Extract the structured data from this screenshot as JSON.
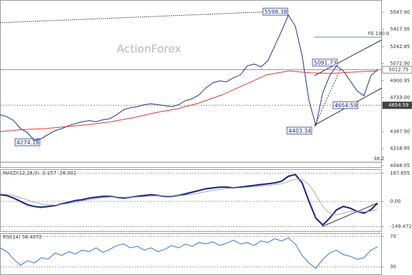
{
  "watermark": "ActionForex",
  "chart_data": [
    {
      "type": "line",
      "ylim": [
        4027,
        5712
      ],
      "yticks": [
        {
          "value": 5587.9,
          "label": "5587.90"
        },
        {
          "value": 5417.95,
          "label": "5417.95"
        },
        {
          "value": 5242.85,
          "label": "5242.85"
        },
        {
          "value": 5072.9,
          "label": "5072.90"
        },
        {
          "value": 4900.95,
          "label": "4900.95"
        },
        {
          "value": 4733,
          "label": "4733.00"
        },
        {
          "value": 4387.9,
          "label": "4387.90"
        },
        {
          "value": 4218.95,
          "label": "4218.95"
        },
        {
          "value": 4048.05,
          "label": "4048.05"
        }
      ],
      "series": [
        {
          "color": "#1a2a8a",
          "values": [
            4560,
            4540,
            4500,
            4420,
            4380,
            4300,
            4320,
            4360,
            4400,
            4420,
            4450,
            4470,
            4490,
            4500,
            4490,
            4510,
            4520,
            4560,
            4610,
            4630,
            4640,
            4660,
            4670,
            4660,
            4650,
            4640,
            4660,
            4700,
            4720,
            4760,
            4830,
            4880,
            4900,
            4890,
            4930,
            4960,
            5050,
            5070,
            5040,
            5100,
            5250,
            5400,
            5560,
            5450,
            5150,
            4700,
            4450,
            4780,
            4950,
            5050,
            5000,
            4900,
            4800,
            4750,
            4950,
            5012.75
          ]
        },
        {
          "color": "#e03030",
          "values": [
            4390,
            4410,
            4420,
            4440,
            4460,
            4490,
            4530,
            4580,
            4620,
            4680,
            4760,
            4860,
            4960,
            5000,
            4980,
            4975,
            4990,
            5000
          ]
        }
      ],
      "price_labels": [
        {
          "value": 5012.75,
          "label": "5012.75"
        },
        {
          "value": 4654.59,
          "label": "4654.59"
        }
      ],
      "annotations": [
        "5598.38",
        "5091.73",
        "4654.59",
        "4403.34",
        "4274.18",
        "FE 100.0",
        "38.2"
      ]
    },
    {
      "type": "line",
      "title": "MACD(12,26,9) -0.157 -26.902",
      "ylim": [
        -180,
        192
      ],
      "grid": true,
      "yticks": [
        {
          "value": 167.655,
          "label": "167.655"
        },
        {
          "value": 0,
          "label": "0.00"
        },
        {
          "value": -149.472,
          "label": "-149.472"
        }
      ],
      "series": [
        {
          "color": "#1a2a8a",
          "values": [
            40,
            35,
            20,
            0,
            -20,
            -30,
            -35,
            -30,
            -25,
            -15,
            -5,
            5,
            10,
            20,
            25,
            30,
            30,
            25,
            20,
            25,
            30,
            35,
            40,
            35,
            30,
            30,
            35,
            45,
            55,
            65,
            75,
            80,
            85,
            85,
            80,
            85,
            90,
            95,
            100,
            105,
            110,
            120,
            150,
            160,
            110,
            0,
            -100,
            -140,
            -100,
            -50,
            -30,
            -40,
            -60,
            -70,
            -50,
            -10
          ]
        },
        {
          "color": "#aaaaaa",
          "values": [
            45,
            42,
            35,
            22,
            8,
            -5,
            -15,
            -20,
            -22,
            -18,
            -12,
            -5,
            2,
            10,
            16,
            22,
            26,
            27,
            25,
            25,
            26,
            28,
            32,
            34,
            33,
            32,
            33,
            37,
            43,
            50,
            58,
            65,
            72,
            77,
            79,
            81,
            84,
            87,
            91,
            95,
            100,
            105,
            118,
            132,
            130,
            100,
            40,
            -30,
            -70,
            -80,
            -70,
            -60,
            -60,
            -62,
            -58,
            -45
          ]
        }
      ]
    },
    {
      "type": "line",
      "title": "RSI(14) 56.4072",
      "ylim": [
        19.3,
        74.4
      ],
      "grid": true,
      "yticks": [
        70,
        30
      ],
      "series": [
        {
          "color": "#2b6fd6",
          "values": [
            55,
            50,
            40,
            32,
            38,
            35,
            42,
            40,
            48,
            45,
            50,
            47,
            52,
            50,
            55,
            49,
            53,
            58,
            60,
            55,
            57,
            52,
            55,
            50,
            53,
            58,
            55,
            60,
            57,
            62,
            60,
            63,
            58,
            61,
            65,
            60,
            62,
            58,
            64,
            62,
            67,
            64,
            68,
            60,
            45,
            35,
            28,
            40,
            48,
            52,
            46,
            44,
            40,
            42,
            52,
            56.4
          ]
        }
      ]
    }
  ]
}
